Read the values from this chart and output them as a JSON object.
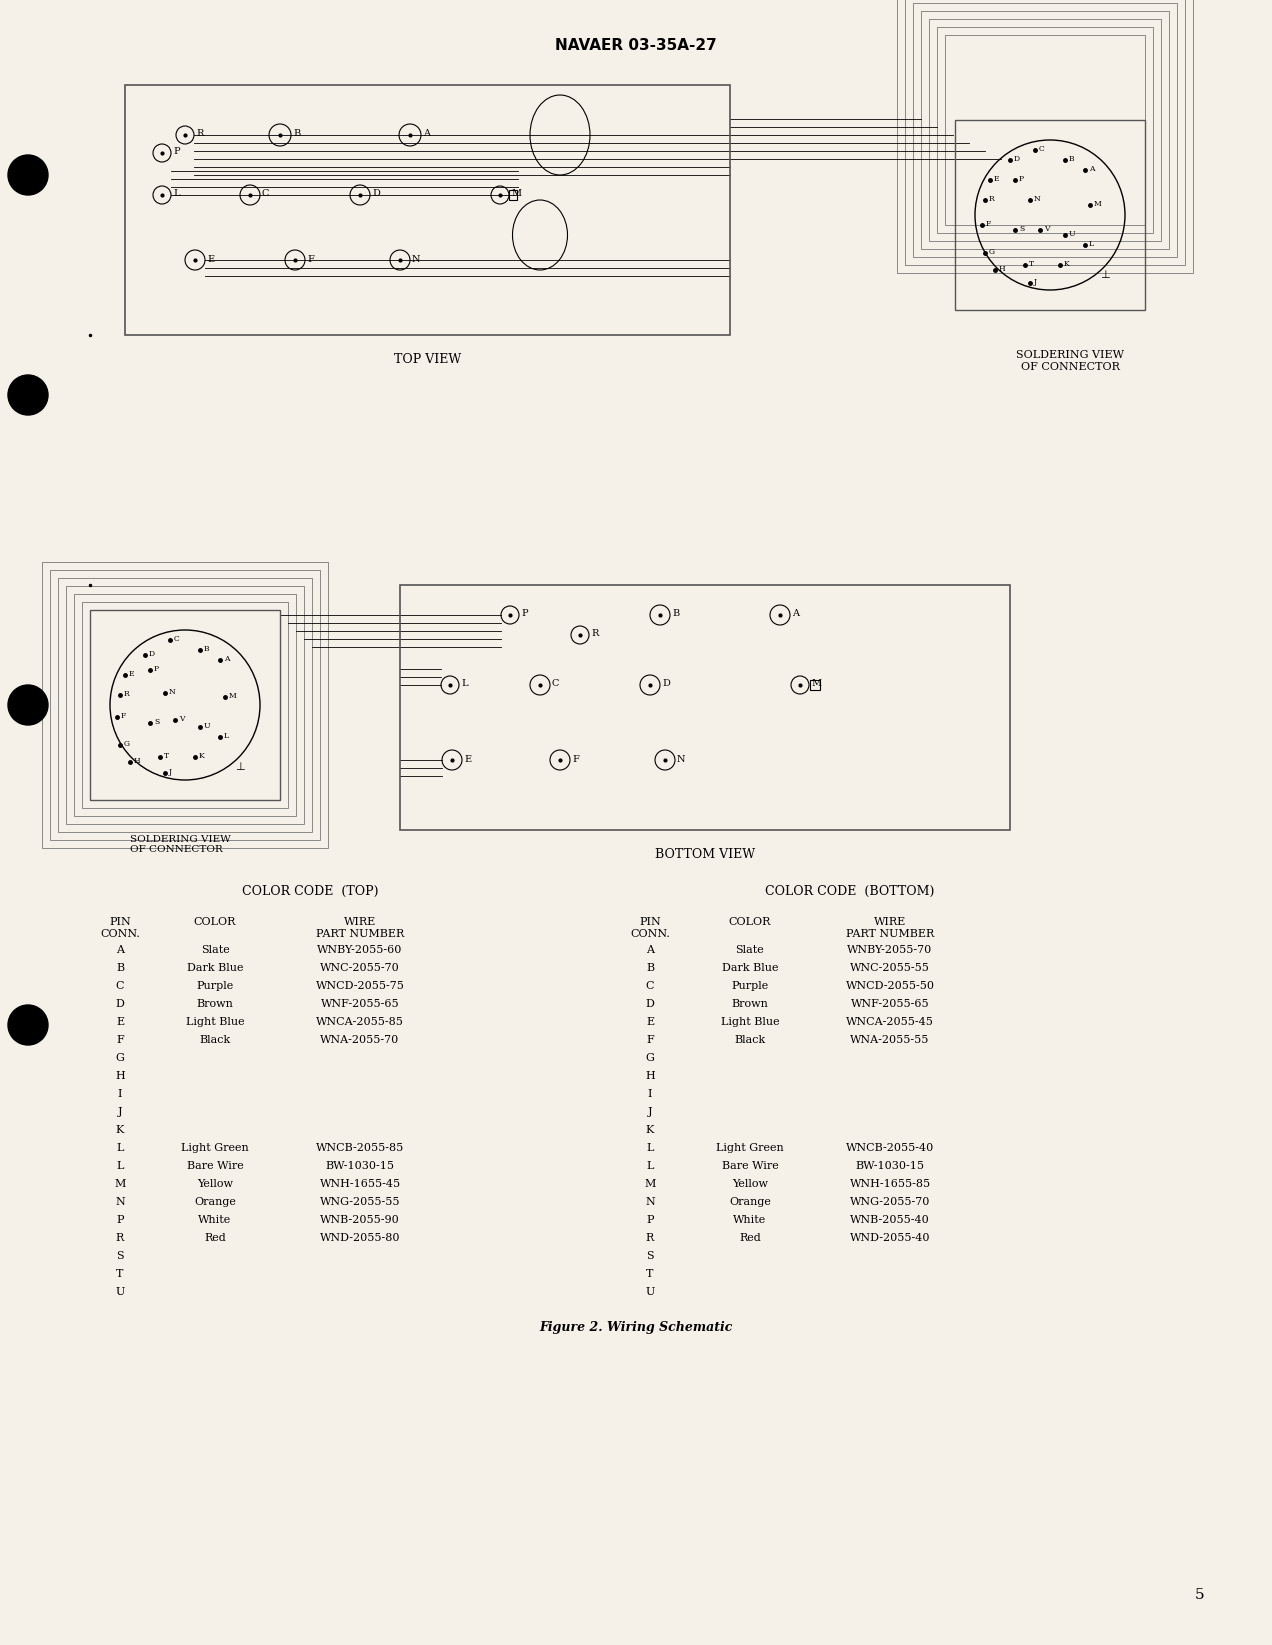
{
  "page_title": "NAVAER 03-35A-27",
  "top_view_label": "TOP VIEW",
  "soldering_view_label": "SOLDERING VIEW\nOF CONNECTOR",
  "bottom_view_label": "BOTTOM VIEW",
  "figure_caption": "Figure 2. Wiring Schematic",
  "page_number": "5",
  "bg_color": "#f5f0e8",
  "color_code_top_title": "COLOR CODE  (TOP)",
  "color_code_bottom_title": "COLOR CODE  (BOTTOM)",
  "table_headers": [
    "PIN\nCONN.",
    "COLOR",
    "WIRE\nPART NUMBER"
  ],
  "top_table": [
    [
      "A",
      "Slate",
      "WNBY-2055-60"
    ],
    [
      "B",
      "Dark Blue",
      "WNC-2055-70"
    ],
    [
      "C",
      "Purple",
      "WNCD-2055-75"
    ],
    [
      "D",
      "Brown",
      "WNF-2055-65"
    ],
    [
      "E",
      "Light Blue",
      "WNCA-2055-85"
    ],
    [
      "F",
      "Black",
      "WNA-2055-70"
    ],
    [
      "G",
      "",
      ""
    ],
    [
      "H",
      "",
      ""
    ],
    [
      "I",
      "",
      ""
    ],
    [
      "J",
      "",
      ""
    ],
    [
      "K",
      "",
      ""
    ],
    [
      "L",
      "Light Green",
      "WNCB-2055-85"
    ],
    [
      "L",
      "Bare Wire",
      "BW-1030-15"
    ],
    [
      "M",
      "Yellow",
      "WNH-1655-45"
    ],
    [
      "N",
      "Orange",
      "WNG-2055-55"
    ],
    [
      "P",
      "White",
      "WNB-2055-90"
    ],
    [
      "R",
      "Red",
      "WND-2055-80"
    ],
    [
      "S",
      "",
      ""
    ],
    [
      "T",
      "",
      ""
    ],
    [
      "U",
      "",
      ""
    ]
  ],
  "bottom_table": [
    [
      "A",
      "Slate",
      "WNBY-2055-70"
    ],
    [
      "B",
      "Dark Blue",
      "WNC-2055-55"
    ],
    [
      "C",
      "Purple",
      "WNCD-2055-50"
    ],
    [
      "D",
      "Brown",
      "WNF-2055-65"
    ],
    [
      "E",
      "Light Blue",
      "WNCA-2055-45"
    ],
    [
      "F",
      "Black",
      "WNA-2055-55"
    ],
    [
      "G",
      "",
      ""
    ],
    [
      "H",
      "",
      ""
    ],
    [
      "I",
      "",
      ""
    ],
    [
      "J",
      "",
      ""
    ],
    [
      "K",
      "",
      ""
    ],
    [
      "L",
      "Light Green",
      "WNCB-2055-40"
    ],
    [
      "L",
      "Bare Wire",
      "BW-1030-15"
    ],
    [
      "M",
      "Yellow",
      "WNH-1655-85"
    ],
    [
      "N",
      "Orange",
      "WNG-2055-70"
    ],
    [
      "P",
      "White",
      "WNB-2055-40"
    ],
    [
      "R",
      "Red",
      "WND-2055-40"
    ],
    [
      "S",
      "",
      ""
    ],
    [
      "T",
      "",
      ""
    ],
    [
      "U",
      "",
      ""
    ]
  ]
}
